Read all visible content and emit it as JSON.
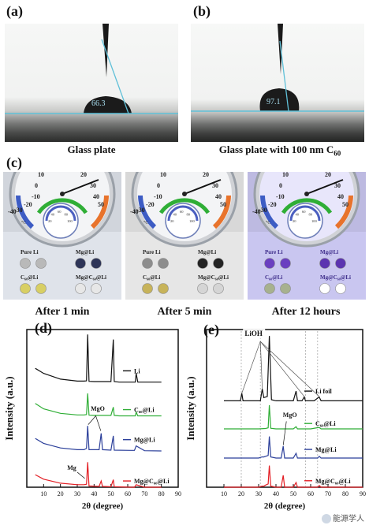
{
  "panels": {
    "a": {
      "label": "(a)",
      "angle": "66.3",
      "caption": "Glass plate"
    },
    "b": {
      "label": "(b)",
      "angle": "97.1",
      "caption_prefix": "Glass plate with 100 nm C",
      "caption_sub": "60"
    },
    "c": {
      "label": "(c)",
      "times": [
        "After 1 min",
        "After 5 min",
        "After 12 hours"
      ],
      "samples": [
        "Pure Li",
        "Mg@Li",
        "C₆₀@Li",
        "Mg@C₆₀@Li"
      ],
      "gauge_ticks_outer": [
        "10",
        "0",
        "-10",
        "-20",
        "-30",
        "-40",
        "20",
        "30",
        "40",
        "50"
      ],
      "gauge_unit": "°C",
      "inner_ticks": [
        "20",
        "40",
        "60",
        "80",
        "100"
      ],
      "tint_colors": [
        "#dfe3ea",
        "#e6e6e6",
        "#c9c6f0"
      ],
      "disc_colors": [
        [
          "#b9b9b9",
          "#2e3558",
          "#d8cf64",
          "#e7e7e7"
        ],
        [
          "#8d8d8d",
          "#232323",
          "#c7b35a",
          "#d5d5d5"
        ],
        [
          "#6a3fc0",
          "#5b34b0",
          "#a7b18f",
          "#ffffff"
        ]
      ]
    },
    "d": {
      "label": "(d)"
    },
    "e": {
      "label": "(e)"
    }
  },
  "watermark": "能源学人",
  "chart_data": [
    {
      "type": "line",
      "panel": "(d)",
      "xlabel": "2θ (degree)",
      "ylabel": "Intensity (a.u.)",
      "xlim": [
        0,
        90
      ],
      "xticks": [
        "10",
        "20",
        "30",
        "40",
        "50",
        "60",
        "70",
        "80",
        "90"
      ],
      "series": [
        {
          "name": "Li",
          "color": "#111111",
          "offset": 4.2,
          "x": [
            5,
            10,
            20,
            30,
            34,
            35.5,
            36.2,
            37,
            40,
            50,
            51.4,
            52,
            55,
            64.5,
            65,
            66,
            75,
            80
          ],
          "y": [
            0.55,
            0.35,
            0.12,
            0.04,
            0.04,
            0.05,
            1.9,
            0.03,
            0.02,
            0.02,
            1.7,
            0.02,
            0.0,
            0.0,
            0.35,
            0.0,
            0.0,
            0.0
          ]
        },
        {
          "name": "C₆₀@Li",
          "color": "#2fae36",
          "offset": 2.85,
          "x": [
            5,
            10,
            20,
            30,
            34,
            35.5,
            36.2,
            37,
            40,
            50,
            51.4,
            52,
            55,
            64.5,
            65,
            66,
            75,
            80
          ],
          "y": [
            0.5,
            0.28,
            0.1,
            0.04,
            0.04,
            0.05,
            0.9,
            0.03,
            0.02,
            0.02,
            0.35,
            0.02,
            0.0,
            0.0,
            0.15,
            0.0,
            0.0,
            0.0
          ]
        },
        {
          "name": "Mg@Li",
          "color": "#2b3f9a",
          "offset": 1.45,
          "x": [
            5,
            10,
            20,
            30,
            32,
            34,
            35.5,
            36.2,
            37,
            43,
            44.2,
            45,
            50,
            51.4,
            52,
            62,
            64,
            65,
            70,
            80
          ],
          "y": [
            0.5,
            0.3,
            0.12,
            0.05,
            0.05,
            0.05,
            0.1,
            1.0,
            0.05,
            0.05,
            0.7,
            0.05,
            0.03,
            0.6,
            0.03,
            0.02,
            0.02,
            0.2,
            0.01,
            0.0
          ]
        },
        {
          "name": "Mg@C₆₀@Li",
          "color": "#e31e24",
          "offset": 0.0,
          "x": [
            5,
            10,
            20,
            30,
            34,
            35.5,
            36.2,
            37,
            43,
            44.2,
            45,
            50,
            51.4,
            52,
            62,
            64,
            65,
            70,
            80
          ],
          "y": [
            0.5,
            0.32,
            0.16,
            0.1,
            0.1,
            0.12,
            1.0,
            0.05,
            0.03,
            0.25,
            0.03,
            0.02,
            0.3,
            0.02,
            0.0,
            0.0,
            0.1,
            0.0,
            0.0
          ]
        }
      ],
      "annotations": [
        {
          "text": "MgO"
        },
        {
          "text": "Mg"
        }
      ]
    },
    {
      "type": "line",
      "panel": "(e)",
      "xlabel": "2θ (degree)",
      "ylabel": "Intensity (a.u.)",
      "xlim": [
        0,
        90
      ],
      "xticks": [
        "10",
        "20",
        "30",
        "40",
        "50",
        "60",
        "70",
        "80",
        "90"
      ],
      "series": [
        {
          "name": "Li foil",
          "color": "#111111",
          "offset": 4.0,
          "x": [
            10,
            19.5,
            20.3,
            21,
            31,
            32.1,
            33,
            35,
            36.2,
            37.4,
            40,
            50,
            51.6,
            52.4,
            55,
            56.3,
            57,
            62,
            64.9,
            66,
            80,
            90
          ],
          "y": [
            0.0,
            0.0,
            0.35,
            0.0,
            0.0,
            0.55,
            0.15,
            0.2,
            3.0,
            0.05,
            0.0,
            0.0,
            0.45,
            0.0,
            0.0,
            0.18,
            0.0,
            0.0,
            0.18,
            0.0,
            0.0,
            0.0
          ]
        },
        {
          "name": "C₆₀@Li",
          "color": "#2fae36",
          "offset": 2.7,
          "x": [
            10,
            30,
            34,
            35.5,
            36.2,
            37,
            40,
            50,
            51.6,
            52.4,
            60,
            64.9,
            66,
            80,
            90
          ],
          "y": [
            0.0,
            0.0,
            0.02,
            0.05,
            1.1,
            0.03,
            0.0,
            0.0,
            0.1,
            0.0,
            0.0,
            0.07,
            0.0,
            0.0,
            0.0
          ]
        },
        {
          "name": "Mg@Li",
          "color": "#2b3f9a",
          "offset": 1.35,
          "x": [
            10,
            30,
            32,
            33,
            34,
            35.5,
            36.2,
            37,
            40,
            43,
            44.2,
            45,
            50,
            51.6,
            52.4,
            60,
            64,
            65,
            66,
            80,
            90
          ],
          "y": [
            0.0,
            0.0,
            0.05,
            0.05,
            0.08,
            0.12,
            1.0,
            0.05,
            0.0,
            0.0,
            0.55,
            0.0,
            0.0,
            0.22,
            0.0,
            0.0,
            0.0,
            0.08,
            0.0,
            0.0,
            0.0
          ]
        },
        {
          "name": "Mg@C₆₀@Li",
          "color": "#e31e24",
          "offset": 0.0,
          "x": [
            10,
            30,
            32,
            33,
            34,
            35.5,
            36.2,
            37,
            40,
            43,
            44.2,
            45,
            50,
            51.6,
            52.4,
            60,
            64,
            65,
            66,
            80,
            90
          ],
          "y": [
            0.0,
            0.0,
            0.05,
            0.05,
            0.1,
            0.15,
            1.0,
            0.05,
            0.0,
            0.0,
            0.55,
            0.0,
            0.0,
            0.22,
            0.0,
            0.0,
            0.0,
            0.08,
            0.0,
            0.0,
            0.0
          ]
        }
      ],
      "annotations": [
        {
          "text": "LiOH"
        },
        {
          "text": "MgO"
        }
      ]
    }
  ]
}
